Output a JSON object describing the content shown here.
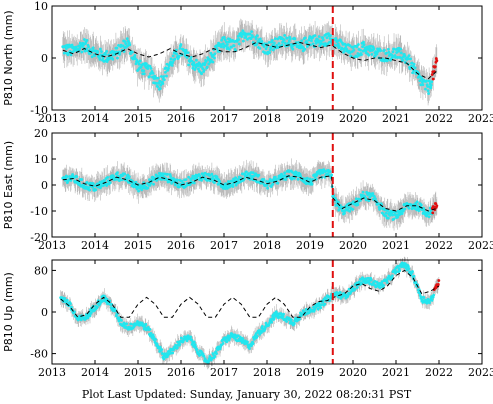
{
  "chart_data": [
    {
      "type": "scatter",
      "station": "P810",
      "ylabel": "P810 North (mm)",
      "xlim": [
        2013,
        2023
      ],
      "ylim": [
        -10,
        10
      ],
      "yticks": [
        -10,
        0,
        10
      ],
      "xticks": [
        2013,
        2014,
        2015,
        2016,
        2017,
        2018,
        2019,
        2020,
        2021,
        2022,
        2023
      ],
      "event_line_x": 2019.53,
      "series": [
        {
          "values": [
            [
              2013.25,
              1.8
            ],
            [
              2013.5,
              1.3
            ],
            [
              2013.75,
              2.6
            ],
            [
              2014.0,
              1.0
            ],
            [
              2014.25,
              0.2
            ],
            [
              2014.5,
              0.9
            ],
            [
              2014.75,
              3.0
            ],
            [
              2015.0,
              -1.5
            ],
            [
              2015.25,
              -2.5
            ],
            [
              2015.5,
              -5.0
            ],
            [
              2015.75,
              -1.0
            ],
            [
              2016.0,
              1.5
            ],
            [
              2016.25,
              -0.8
            ],
            [
              2016.5,
              -2.2
            ],
            [
              2016.75,
              0.5
            ],
            [
              2017.0,
              3.0
            ],
            [
              2017.25,
              2.2
            ],
            [
              2017.5,
              5.0
            ],
            [
              2017.75,
              3.5
            ],
            [
              2018.0,
              1.8
            ],
            [
              2018.25,
              2.8
            ],
            [
              2018.5,
              3.6
            ],
            [
              2018.75,
              1.8
            ],
            [
              2019.0,
              3.6
            ],
            [
              2019.25,
              3.0
            ],
            [
              2019.5,
              4.0
            ],
            [
              2019.75,
              2.0
            ],
            [
              2020.0,
              1.0
            ],
            [
              2020.25,
              2.0
            ],
            [
              2020.5,
              1.0
            ],
            [
              2020.75,
              0.5
            ],
            [
              2021.0,
              1.0
            ],
            [
              2021.25,
              0.0
            ],
            [
              2021.5,
              -3.5
            ],
            [
              2021.75,
              -6.0
            ],
            [
              2021.95,
              -1.0
            ]
          ]
        },
        {
          "values": [
            [
              2013.25,
              1.5
            ],
            [
              2013.5,
              0.8
            ],
            [
              2013.75,
              1.8
            ],
            [
              2014.0,
              0.8
            ],
            [
              2014.25,
              0.2
            ],
            [
              2014.5,
              0.8
            ],
            [
              2014.75,
              1.8
            ],
            [
              2015.0,
              0.8
            ],
            [
              2015.25,
              0.2
            ],
            [
              2015.5,
              0.8
            ],
            [
              2015.75,
              1.8
            ],
            [
              2016.0,
              0.8
            ],
            [
              2016.25,
              0.2
            ],
            [
              2016.5,
              0.8
            ],
            [
              2016.75,
              1.8
            ],
            [
              2017.0,
              1.2
            ],
            [
              2017.25,
              1.2
            ],
            [
              2017.5,
              2.0
            ],
            [
              2017.75,
              3.0
            ],
            [
              2018.0,
              2.5
            ],
            [
              2018.25,
              2.0
            ],
            [
              2018.5,
              2.5
            ],
            [
              2018.75,
              3.0
            ],
            [
              2019.0,
              2.5
            ],
            [
              2019.25,
              2.0
            ],
            [
              2019.5,
              2.5
            ],
            [
              2019.75,
              1.0
            ],
            [
              2020.0,
              0.0
            ],
            [
              2020.25,
              -0.5
            ],
            [
              2020.5,
              0.0
            ],
            [
              2020.75,
              0.0
            ],
            [
              2021.0,
              -0.5
            ],
            [
              2021.25,
              -1.0
            ],
            [
              2021.5,
              -3.0
            ],
            [
              2021.75,
              -4.0
            ],
            [
              2021.95,
              -2.5
            ]
          ]
        }
      ]
    },
    {
      "type": "scatter",
      "station": "P810",
      "ylabel": "P810 East (mm)",
      "xlim": [
        2013,
        2023
      ],
      "ylim": [
        -20,
        20
      ],
      "yticks": [
        -20,
        -10,
        0,
        10,
        20
      ],
      "xticks": [
        2013,
        2014,
        2015,
        2016,
        2017,
        2018,
        2019,
        2020,
        2021,
        2022,
        2023
      ],
      "event_line_x": 2019.53,
      "series": [
        {
          "values": [
            [
              2013.25,
              2.5
            ],
            [
              2013.5,
              2.5
            ],
            [
              2013.75,
              0.0
            ],
            [
              2014.0,
              -1.0
            ],
            [
              2014.25,
              1.0
            ],
            [
              2014.5,
              3.5
            ],
            [
              2014.75,
              2.5
            ],
            [
              2015.0,
              -1.0
            ],
            [
              2015.25,
              0.5
            ],
            [
              2015.5,
              3.5
            ],
            [
              2015.75,
              2.5
            ],
            [
              2016.0,
              0.0
            ],
            [
              2016.25,
              2.0
            ],
            [
              2016.5,
              3.5
            ],
            [
              2016.75,
              2.5
            ],
            [
              2017.0,
              0.0
            ],
            [
              2017.25,
              1.0
            ],
            [
              2017.5,
              4.0
            ],
            [
              2017.75,
              3.0
            ],
            [
              2018.0,
              0.0
            ],
            [
              2018.25,
              2.0
            ],
            [
              2018.5,
              4.0
            ],
            [
              2018.75,
              3.5
            ],
            [
              2019.0,
              1.0
            ],
            [
              2019.25,
              4.5
            ],
            [
              2019.5,
              4.0
            ],
            [
              2019.53,
              -5.0
            ],
            [
              2019.75,
              -10.0
            ],
            [
              2020.0,
              -8.0
            ],
            [
              2020.25,
              -4.0
            ],
            [
              2020.5,
              -5.0
            ],
            [
              2020.75,
              -11.0
            ],
            [
              2021.0,
              -12.0
            ],
            [
              2021.25,
              -8.0
            ],
            [
              2021.5,
              -8.0
            ],
            [
              2021.75,
              -11.0
            ],
            [
              2021.95,
              -8.0
            ]
          ]
        },
        {
          "values": [
            [
              2013.25,
              2.0
            ],
            [
              2013.5,
              2.5
            ],
            [
              2013.75,
              0.5
            ],
            [
              2014.0,
              -0.5
            ],
            [
              2014.25,
              1.0
            ],
            [
              2014.5,
              3.0
            ],
            [
              2014.75,
              2.0
            ],
            [
              2015.0,
              0.0
            ],
            [
              2015.25,
              1.0
            ],
            [
              2015.5,
              3.0
            ],
            [
              2015.75,
              2.0
            ],
            [
              2016.0,
              0.0
            ],
            [
              2016.25,
              1.0
            ],
            [
              2016.5,
              3.0
            ],
            [
              2016.75,
              2.0
            ],
            [
              2017.0,
              0.0
            ],
            [
              2017.25,
              1.0
            ],
            [
              2017.5,
              3.0
            ],
            [
              2017.75,
              2.0
            ],
            [
              2018.0,
              0.5
            ],
            [
              2018.25,
              1.5
            ],
            [
              2018.5,
              3.5
            ],
            [
              2018.75,
              3.0
            ],
            [
              2019.0,
              1.0
            ],
            [
              2019.25,
              3.0
            ],
            [
              2019.5,
              3.5
            ],
            [
              2019.53,
              -5.0
            ],
            [
              2019.75,
              -9.0
            ],
            [
              2020.0,
              -7.0
            ],
            [
              2020.25,
              -5.0
            ],
            [
              2020.5,
              -6.0
            ],
            [
              2020.75,
              -9.0
            ],
            [
              2021.0,
              -10.0
            ],
            [
              2021.25,
              -8.0
            ],
            [
              2021.5,
              -8.0
            ],
            [
              2021.75,
              -10.0
            ],
            [
              2021.95,
              -9.0
            ]
          ]
        }
      ]
    },
    {
      "type": "scatter",
      "station": "P810",
      "ylabel": "P810 Up (mm)",
      "xlim": [
        2013,
        2023
      ],
      "ylim": [
        -100,
        100
      ],
      "yticks": [
        -80,
        0,
        80
      ],
      "xticks": [
        2013,
        2014,
        2015,
        2016,
        2017,
        2018,
        2019,
        2020,
        2021,
        2022,
        2023
      ],
      "event_line_x": 2019.53,
      "series": [
        {
          "values": [
            [
              2013.2,
              30
            ],
            [
              2013.4,
              15
            ],
            [
              2013.6,
              -15
            ],
            [
              2013.8,
              -10
            ],
            [
              2014.0,
              10
            ],
            [
              2014.2,
              28
            ],
            [
              2014.4,
              10
            ],
            [
              2014.6,
              -20
            ],
            [
              2014.8,
              -30
            ],
            [
              2015.0,
              -20
            ],
            [
              2015.2,
              -30
            ],
            [
              2015.4,
              -55
            ],
            [
              2015.6,
              -85
            ],
            [
              2015.8,
              -75
            ],
            [
              2016.0,
              -55
            ],
            [
              2016.2,
              -50
            ],
            [
              2016.4,
              -75
            ],
            [
              2016.6,
              -95
            ],
            [
              2016.8,
              -80
            ],
            [
              2017.0,
              -55
            ],
            [
              2017.2,
              -45
            ],
            [
              2017.4,
              -55
            ],
            [
              2017.6,
              -65
            ],
            [
              2017.8,
              -40
            ],
            [
              2018.0,
              -25
            ],
            [
              2018.2,
              -5
            ],
            [
              2018.4,
              -10
            ],
            [
              2018.6,
              -20
            ],
            [
              2018.8,
              -5
            ],
            [
              2019.0,
              5
            ],
            [
              2019.2,
              10
            ],
            [
              2019.4,
              25
            ],
            [
              2019.6,
              35
            ],
            [
              2019.8,
              30
            ],
            [
              2020.0,
              45
            ],
            [
              2020.2,
              60
            ],
            [
              2020.4,
              60
            ],
            [
              2020.6,
              50
            ],
            [
              2020.8,
              60
            ],
            [
              2021.0,
              80
            ],
            [
              2021.2,
              92
            ],
            [
              2021.4,
              70
            ],
            [
              2021.6,
              25
            ],
            [
              2021.8,
              20
            ],
            [
              2022.0,
              60
            ]
          ]
        },
        {
          "values": [
            [
              2013.2,
              25
            ],
            [
              2013.4,
              12
            ],
            [
              2013.6,
              -10
            ],
            [
              2013.8,
              -5
            ],
            [
              2014.0,
              15
            ],
            [
              2014.2,
              28
            ],
            [
              2014.4,
              15
            ],
            [
              2014.6,
              -10
            ],
            [
              2014.8,
              -10
            ],
            [
              2015.0,
              15
            ],
            [
              2015.2,
              28
            ],
            [
              2015.4,
              15
            ],
            [
              2015.6,
              -10
            ],
            [
              2015.8,
              -10
            ],
            [
              2016.0,
              15
            ],
            [
              2016.2,
              28
            ],
            [
              2016.4,
              15
            ],
            [
              2016.6,
              -10
            ],
            [
              2016.8,
              -10
            ],
            [
              2017.0,
              15
            ],
            [
              2017.2,
              28
            ],
            [
              2017.4,
              15
            ],
            [
              2017.6,
              -10
            ],
            [
              2017.8,
              -10
            ],
            [
              2018.0,
              15
            ],
            [
              2018.2,
              28
            ],
            [
              2018.4,
              15
            ],
            [
              2018.6,
              -10
            ],
            [
              2018.8,
              -10
            ],
            [
              2019.0,
              10
            ],
            [
              2019.2,
              20
            ],
            [
              2019.4,
              22
            ],
            [
              2019.6,
              30
            ],
            [
              2019.8,
              35
            ],
            [
              2020.0,
              50
            ],
            [
              2020.2,
              55
            ],
            [
              2020.4,
              45
            ],
            [
              2020.6,
              40
            ],
            [
              2020.8,
              50
            ],
            [
              2021.0,
              70
            ],
            [
              2021.2,
              80
            ],
            [
              2021.4,
              65
            ],
            [
              2021.6,
              35
            ],
            [
              2021.8,
              40
            ],
            [
              2022.0,
              50
            ]
          ]
        }
      ]
    }
  ],
  "footer": "Plot Last Updated:   Sunday, January 30, 2022 08:20:31 PST"
}
